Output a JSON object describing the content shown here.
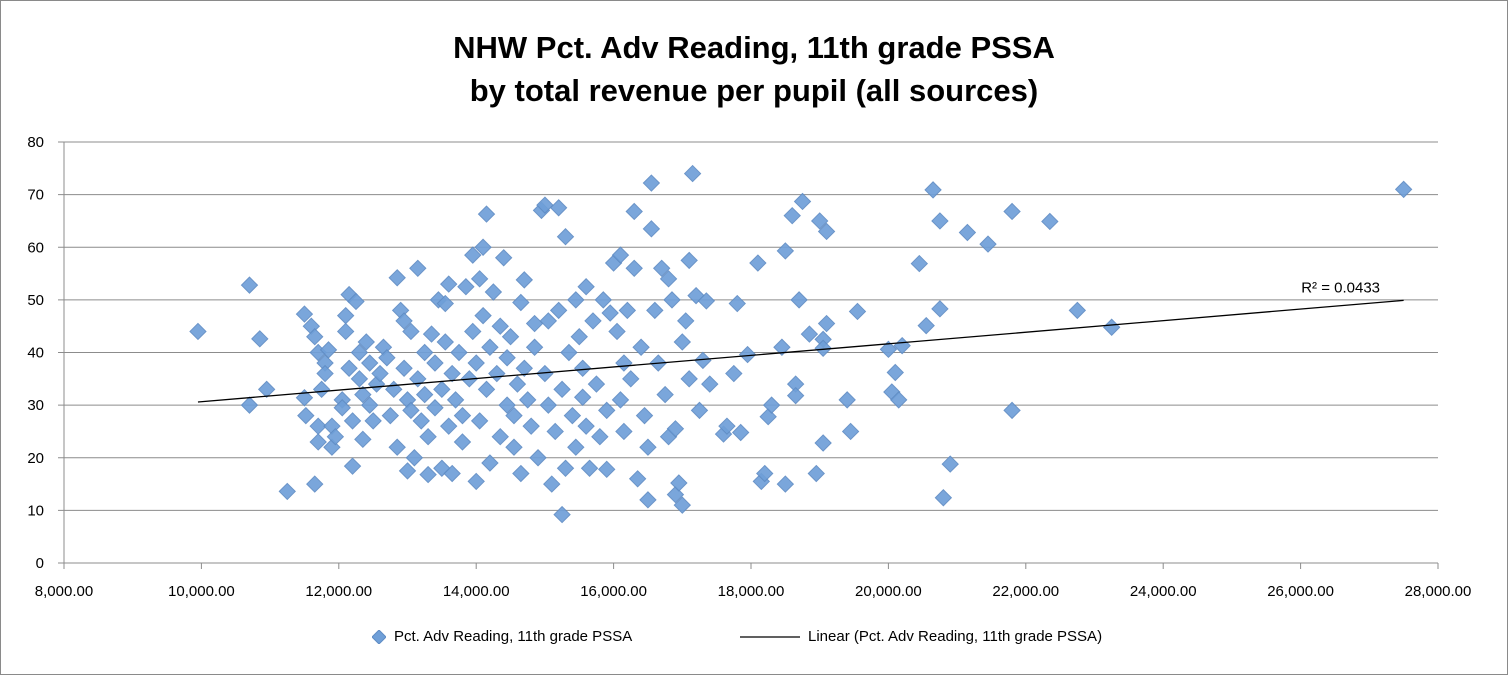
{
  "chart_data": {
    "type": "scatter",
    "title_lines": [
      "NHW Pct. Adv Reading, 11th grade PSSA",
      "by total revenue per pupil (all sources)"
    ],
    "xlabel": "",
    "ylabel": "",
    "xlim": [
      8000,
      28000
    ],
    "ylim": [
      0,
      80
    ],
    "x_ticks": [
      8000,
      10000,
      12000,
      14000,
      16000,
      18000,
      20000,
      22000,
      24000,
      26000,
      28000
    ],
    "x_tick_labels": [
      "8,000.00",
      "10,000.00",
      "12,000.00",
      "14,000.00",
      "16,000.00",
      "18,000.00",
      "20,000.00",
      "22,000.00",
      "24,000.00",
      "26,000.00",
      "28,000.00"
    ],
    "y_ticks": [
      0,
      10,
      20,
      30,
      40,
      50,
      60,
      70,
      80
    ],
    "y_tick_labels": [
      "0",
      "10",
      "20",
      "30",
      "40",
      "50",
      "60",
      "70",
      "80"
    ],
    "grid": "horizontal",
    "series": [
      {
        "name": "Pct. Adv Reading, 11th grade PSSA",
        "marker": "diamond",
        "color": "#6f9fd8",
        "points": [
          [
            9950,
            44
          ],
          [
            10700,
            30
          ],
          [
            10700,
            52.8
          ],
          [
            10850,
            42.6
          ],
          [
            10950,
            33
          ],
          [
            11250,
            13.6
          ],
          [
            11500,
            47.3
          ],
          [
            11500,
            31.4
          ],
          [
            11520,
            28
          ],
          [
            11600,
            45
          ],
          [
            11650,
            15
          ],
          [
            11650,
            43
          ],
          [
            11700,
            40
          ],
          [
            11700,
            26
          ],
          [
            11700,
            23
          ],
          [
            11750,
            33
          ],
          [
            11800,
            38
          ],
          [
            11800,
            36
          ],
          [
            11850,
            40.5
          ],
          [
            11900,
            26
          ],
          [
            11900,
            22
          ],
          [
            11950,
            24
          ],
          [
            12050,
            31
          ],
          [
            12050,
            29.5
          ],
          [
            12100,
            47
          ],
          [
            12100,
            44
          ],
          [
            12150,
            51
          ],
          [
            12150,
            37
          ],
          [
            12200,
            18.4
          ],
          [
            12200,
            27
          ],
          [
            12250,
            49.7
          ],
          [
            12300,
            40
          ],
          [
            12300,
            35
          ],
          [
            12350,
            32
          ],
          [
            12350,
            23.5
          ],
          [
            12400,
            42
          ],
          [
            12450,
            38
          ],
          [
            12450,
            30
          ],
          [
            12500,
            27
          ],
          [
            12550,
            34
          ],
          [
            12600,
            36
          ],
          [
            12650,
            41
          ],
          [
            12700,
            39
          ],
          [
            12750,
            28
          ],
          [
            12800,
            33
          ],
          [
            12850,
            22
          ],
          [
            12850,
            54.2
          ],
          [
            12900,
            48
          ],
          [
            12950,
            46
          ],
          [
            12950,
            37
          ],
          [
            13000,
            31
          ],
          [
            13000,
            17.5
          ],
          [
            13050,
            29
          ],
          [
            13050,
            44
          ],
          [
            13100,
            20
          ],
          [
            13150,
            56
          ],
          [
            13150,
            35
          ],
          [
            13200,
            27
          ],
          [
            13250,
            32
          ],
          [
            13250,
            40
          ],
          [
            13300,
            16.8
          ],
          [
            13300,
            24
          ],
          [
            13350,
            43.5
          ],
          [
            13400,
            38
          ],
          [
            13400,
            29.5
          ],
          [
            13450,
            50
          ],
          [
            13500,
            33
          ],
          [
            13500,
            18
          ],
          [
            13550,
            49.3
          ],
          [
            13550,
            42
          ],
          [
            13600,
            53
          ],
          [
            13600,
            26
          ],
          [
            13650,
            36
          ],
          [
            13650,
            17
          ],
          [
            13700,
            31
          ],
          [
            13750,
            40
          ],
          [
            13800,
            23
          ],
          [
            13800,
            28
          ],
          [
            13850,
            52.5
          ],
          [
            13900,
            35
          ],
          [
            13950,
            58.5
          ],
          [
            13950,
            44
          ],
          [
            14000,
            15.5
          ],
          [
            14000,
            38
          ],
          [
            14050,
            54
          ],
          [
            14050,
            27
          ],
          [
            14100,
            60
          ],
          [
            14100,
            47
          ],
          [
            14150,
            66.3
          ],
          [
            14150,
            33
          ],
          [
            14200,
            19
          ],
          [
            14200,
            41
          ],
          [
            14250,
            51.5
          ],
          [
            14300,
            36
          ],
          [
            14350,
            24
          ],
          [
            14350,
            45
          ],
          [
            14400,
            58
          ],
          [
            14450,
            30
          ],
          [
            14450,
            39
          ],
          [
            14500,
            43
          ],
          [
            14550,
            28
          ],
          [
            14550,
            22
          ],
          [
            14600,
            34
          ],
          [
            14650,
            49.5
          ],
          [
            14650,
            17
          ],
          [
            14700,
            53.8
          ],
          [
            14700,
            37
          ],
          [
            14750,
            31
          ],
          [
            14800,
            26
          ],
          [
            14850,
            41
          ],
          [
            14850,
            45.5
          ],
          [
            14900,
            20
          ],
          [
            14950,
            67
          ],
          [
            15000,
            68
          ],
          [
            15000,
            36
          ],
          [
            15050,
            30
          ],
          [
            15050,
            46
          ],
          [
            15100,
            15
          ],
          [
            15150,
            25
          ],
          [
            15200,
            67.5
          ],
          [
            15200,
            48
          ],
          [
            15250,
            9.2
          ],
          [
            15250,
            33
          ],
          [
            15300,
            62
          ],
          [
            15300,
            18
          ],
          [
            15350,
            40
          ],
          [
            15400,
            28
          ],
          [
            15450,
            50
          ],
          [
            15450,
            22
          ],
          [
            15500,
            43
          ],
          [
            15550,
            31.5
          ],
          [
            15550,
            37
          ],
          [
            15600,
            52.5
          ],
          [
            15600,
            26
          ],
          [
            15650,
            18
          ],
          [
            15700,
            46
          ],
          [
            15750,
            34
          ],
          [
            15800,
            24
          ],
          [
            15850,
            50
          ],
          [
            15900,
            29
          ],
          [
            15900,
            17.8
          ],
          [
            15950,
            47.5
          ],
          [
            16000,
            57
          ],
          [
            16050,
            44
          ],
          [
            16100,
            58.5
          ],
          [
            16100,
            31
          ],
          [
            16150,
            38
          ],
          [
            16150,
            25
          ],
          [
            16200,
            48
          ],
          [
            16250,
            35
          ],
          [
            16300,
            56
          ],
          [
            16300,
            66.8
          ],
          [
            16350,
            16
          ],
          [
            16400,
            41
          ],
          [
            16450,
            28
          ],
          [
            16500,
            12
          ],
          [
            16500,
            22
          ],
          [
            16550,
            72.2
          ],
          [
            16550,
            63.5
          ],
          [
            16600,
            48
          ],
          [
            16650,
            38
          ],
          [
            16700,
            56
          ],
          [
            16750,
            32
          ],
          [
            16800,
            54
          ],
          [
            16800,
            24
          ],
          [
            16850,
            50
          ],
          [
            16900,
            13
          ],
          [
            16900,
            25.5
          ],
          [
            16950,
            15.2
          ],
          [
            17000,
            11
          ],
          [
            17000,
            42
          ],
          [
            17050,
            46
          ],
          [
            17100,
            57.5
          ],
          [
            17100,
            35
          ],
          [
            17150,
            74
          ],
          [
            17200,
            50.8
          ],
          [
            17250,
            29
          ],
          [
            17300,
            38.5
          ],
          [
            17350,
            49.8
          ],
          [
            17400,
            34
          ],
          [
            17600,
            24.5
          ],
          [
            17650,
            26
          ],
          [
            17750,
            36
          ],
          [
            17800,
            49.3
          ],
          [
            17850,
            24.8
          ],
          [
            17950,
            39.6
          ],
          [
            18100,
            57
          ],
          [
            18150,
            15.5
          ],
          [
            18200,
            17
          ],
          [
            18250,
            27.8
          ],
          [
            18300,
            30
          ],
          [
            18450,
            41
          ],
          [
            18500,
            15
          ],
          [
            18500,
            59.3
          ],
          [
            18600,
            66
          ],
          [
            18650,
            34
          ],
          [
            18650,
            31.8
          ],
          [
            18700,
            50
          ],
          [
            18750,
            68.7
          ],
          [
            18850,
            43.5
          ],
          [
            18950,
            17
          ],
          [
            19000,
            65
          ],
          [
            19050,
            42.5
          ],
          [
            19050,
            40.8
          ],
          [
            19050,
            22.8
          ],
          [
            19100,
            45.5
          ],
          [
            19100,
            63
          ],
          [
            19400,
            31
          ],
          [
            19450,
            25
          ],
          [
            19550,
            47.8
          ],
          [
            20000,
            40.6
          ],
          [
            20050,
            32.5
          ],
          [
            20100,
            36.2
          ],
          [
            20150,
            31
          ],
          [
            20200,
            41.3
          ],
          [
            20450,
            56.9
          ],
          [
            20550,
            45.1
          ],
          [
            20650,
            70.9
          ],
          [
            20750,
            65
          ],
          [
            20750,
            48.3
          ],
          [
            20800,
            12.4
          ],
          [
            20900,
            18.8
          ],
          [
            21150,
            62.8
          ],
          [
            21450,
            60.6
          ],
          [
            21800,
            66.8
          ],
          [
            21800,
            29
          ],
          [
            22350,
            64.9
          ],
          [
            22750,
            48
          ],
          [
            23250,
            44.8
          ],
          [
            27500,
            71
          ]
        ]
      }
    ],
    "trendline": {
      "name": "Linear (Pct. Adv Reading, 11th grade PSSA)",
      "type": "linear",
      "x_range": [
        9950,
        27500
      ],
      "y_range": [
        30.6,
        49.9
      ],
      "r2_label": "R² = 0.0433",
      "color": "#000000"
    },
    "legend": {
      "placement": "bottom",
      "entries": [
        "Pct. Adv Reading, 11th grade PSSA",
        "Linear (Pct. Adv Reading, 11th grade PSSA)"
      ]
    }
  }
}
